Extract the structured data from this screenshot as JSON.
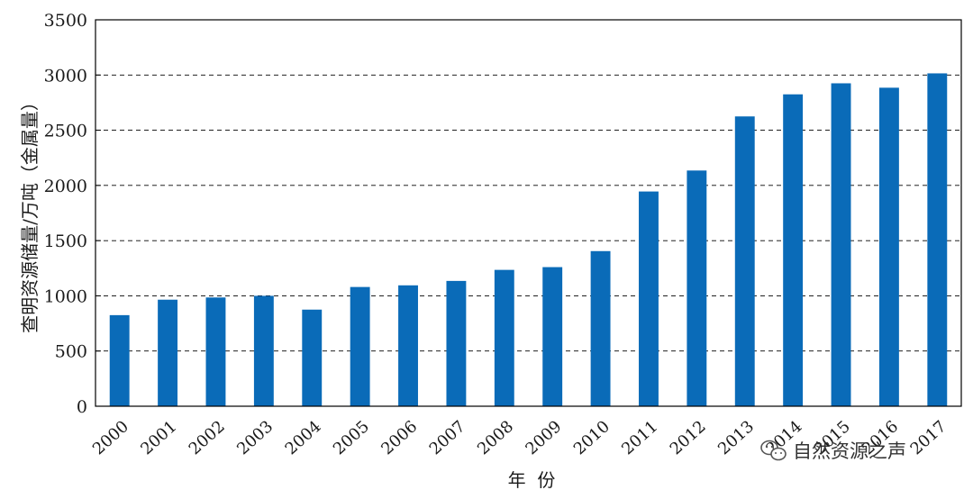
{
  "chart_data": {
    "type": "bar",
    "title": "",
    "xlabel": "年  份",
    "ylabel": "查明资源储量/万吨（金属量）",
    "categories": [
      "2000",
      "2001",
      "2002",
      "2003",
      "2004",
      "2005",
      "2006",
      "2007",
      "2008",
      "2009",
      "2010",
      "2011",
      "2012",
      "2013",
      "2014",
      "2015",
      "2016",
      "2017"
    ],
    "values": [
      825,
      965,
      985,
      1000,
      875,
      1080,
      1095,
      1135,
      1235,
      1260,
      1405,
      1945,
      2135,
      2625,
      2825,
      2925,
      2885,
      3015
    ],
    "ylim": [
      0,
      3500
    ],
    "yticks": [
      0,
      500,
      1000,
      1500,
      2000,
      2500,
      3000,
      3500
    ],
    "grid": "horizontal dashed",
    "colors": {
      "bar": "#0a6bb8",
      "axis": "#000000",
      "grid": "#000000"
    }
  },
  "watermark": {
    "text": "自然资源之声",
    "icon": "wechat-icon"
  }
}
